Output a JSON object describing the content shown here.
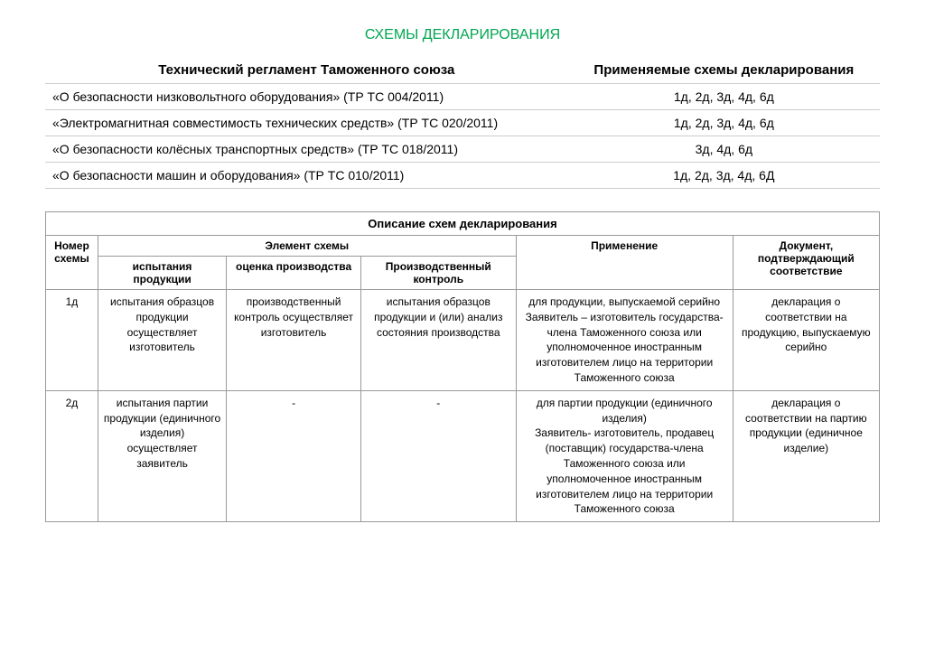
{
  "title": "СХЕМЫ ДЕКЛАРИРОВАНИЯ",
  "table1": {
    "header_col1": "Технический регламент Таможенного союза",
    "header_col2": "Применяемые схемы декларирования",
    "rows": [
      {
        "regulation": "«О безопасности низковольтного оборудования» (ТР ТС 004/2011)",
        "schemes": "1д, 2д, 3д, 4д, 6д"
      },
      {
        "regulation": "«Электромагнитная совместимость технических средств» (ТР ТС 020/2011)",
        "schemes": "1д, 2д, 3д, 4д, 6д"
      },
      {
        "regulation": "«О безопасности колёсных транспортных средств» (ТР ТС 018/2011)",
        "schemes": "3д, 4д, 6д"
      },
      {
        "regulation": "«О безопасности машин и оборудования» (ТР ТС 010/2011)",
        "schemes": "1д, 2д, 3д, 4д, 6Д"
      }
    ]
  },
  "table2": {
    "caption": "Описание схем декларирования",
    "header_scheme_number": "Номер схемы",
    "header_scheme_element": "Элемент схемы",
    "header_application": "Применение",
    "header_document": "Документ, подтверждающий соответствие",
    "subheader_testing": "испытания продукции",
    "subheader_assessment": "оценка производства",
    "subheader_control": "Производственный контроль",
    "rows": [
      {
        "number": "1д",
        "testing": "испытания образцов продукции осуществляет изготовитель",
        "assessment": "производственный контроль осуществляет изготовитель",
        "control": "испытания образцов продукции и (или) анализ состояния производства",
        "application": "для продукции, выпускаемой серийно\nЗаявитель – изготовитель государства-члена Таможенного союза или уполномоченное иностранным изготовителем лицо на территории Таможенного союза",
        "document": "декларация о соответствии на продукцию, выпускаемую серийно"
      },
      {
        "number": "2д",
        "testing": "испытания партии продукции (единичного изделия) осуществляет заявитель",
        "assessment": "-",
        "control": "-",
        "application": "для партии продукции (единичного изделия)\nЗаявитель- изготовитель, продавец (поставщик) государства-члена Таможенного союза или уполномоченное иностранным изготовителем лицо на территории Таможенного союза",
        "document": "декларация о соответствии на партию продукции (единичное изделие)"
      }
    ]
  }
}
